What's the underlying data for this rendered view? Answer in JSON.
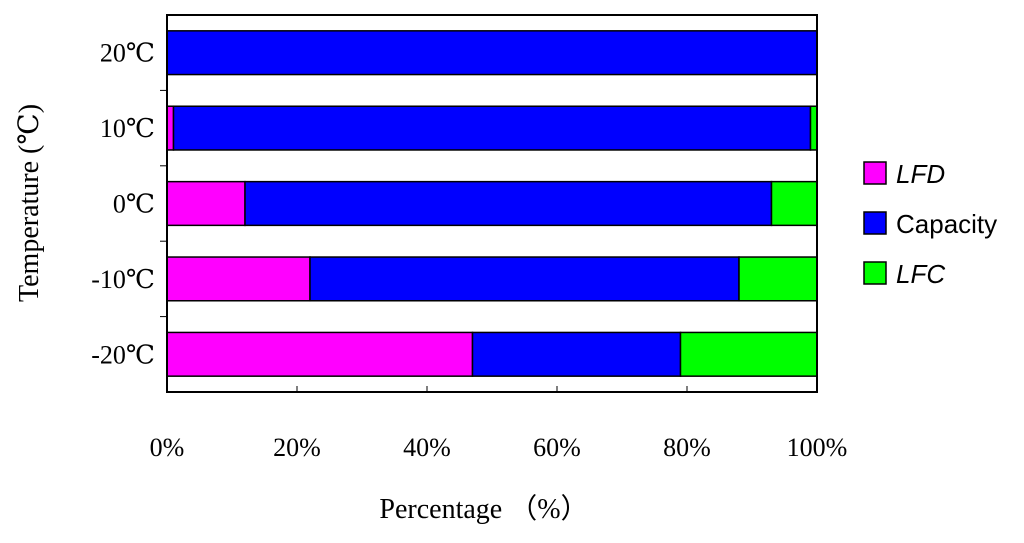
{
  "chart_data": {
    "type": "bar",
    "orientation": "horizontal",
    "stacked": true,
    "categories": [
      "-20℃",
      "-10℃",
      "0℃",
      "10℃",
      "20℃"
    ],
    "series": [
      {
        "name": "LFD",
        "color": "#ff00ff",
        "values": [
          47,
          22,
          12,
          1,
          0
        ]
      },
      {
        "name": "Capacity",
        "color": "#0000ff",
        "values": [
          32,
          66,
          81,
          98,
          100
        ]
      },
      {
        "name": "LFC",
        "color": "#00ff00",
        "values": [
          21,
          12,
          7,
          1,
          0
        ]
      }
    ],
    "xlabel": "Percentage （%）",
    "ylabel": "Temperature (℃)",
    "xlim": [
      0,
      100
    ],
    "xticks": [
      "0%",
      "20%",
      "40%",
      "60%",
      "80%",
      "100%"
    ],
    "grid": false,
    "legend_position": "right"
  }
}
